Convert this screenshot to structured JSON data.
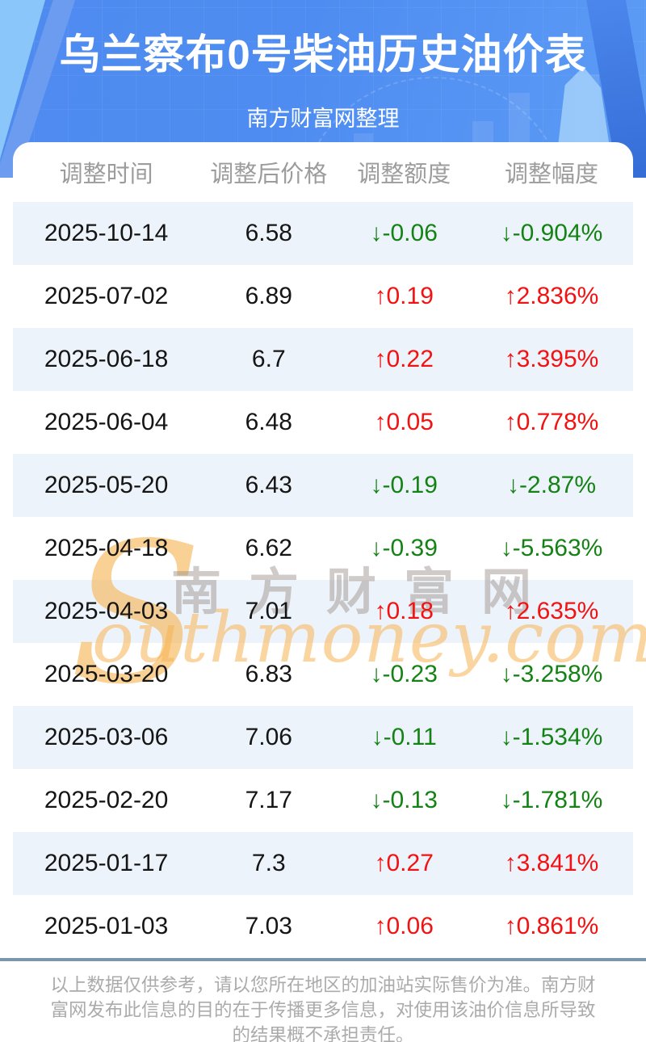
{
  "hero": {
    "title": "乌兰察布0号柴油历史油价表",
    "subtitle": "南方财富网整理"
  },
  "table": {
    "headers": [
      "调整时间",
      "调整后价格",
      "调整额度",
      "调整幅度"
    ],
    "arrows": {
      "up": "↑",
      "down": "↓"
    },
    "rows": [
      {
        "date": "2025-10-14",
        "price": "6.58",
        "change": "-0.06",
        "percent": "-0.904%",
        "direction": "down"
      },
      {
        "date": "2025-07-02",
        "price": "6.89",
        "change": "0.19",
        "percent": "2.836%",
        "direction": "up"
      },
      {
        "date": "2025-06-18",
        "price": "6.7",
        "change": "0.22",
        "percent": "3.395%",
        "direction": "up"
      },
      {
        "date": "2025-06-04",
        "price": "6.48",
        "change": "0.05",
        "percent": "0.778%",
        "direction": "up"
      },
      {
        "date": "2025-05-20",
        "price": "6.43",
        "change": "-0.19",
        "percent": "-2.87%",
        "direction": "down"
      },
      {
        "date": "2025-04-18",
        "price": "6.62",
        "change": "-0.39",
        "percent": "-5.563%",
        "direction": "down"
      },
      {
        "date": "2025-04-03",
        "price": "7.01",
        "change": "0.18",
        "percent": "2.635%",
        "direction": "up"
      },
      {
        "date": "2025-03-20",
        "price": "6.83",
        "change": "-0.23",
        "percent": "-3.258%",
        "direction": "down"
      },
      {
        "date": "2025-03-06",
        "price": "7.06",
        "change": "-0.11",
        "percent": "-1.534%",
        "direction": "down"
      },
      {
        "date": "2025-02-20",
        "price": "7.17",
        "change": "-0.13",
        "percent": "-1.781%",
        "direction": "down"
      },
      {
        "date": "2025-01-17",
        "price": "7.3",
        "change": "0.27",
        "percent": "3.841%",
        "direction": "up"
      },
      {
        "date": "2025-01-03",
        "price": "7.03",
        "change": "0.06",
        "percent": "0.861%",
        "direction": "up"
      }
    ]
  },
  "watermark": {
    "initial": "S",
    "cn": "南方财富网",
    "en": "outhmoney.com"
  },
  "footer": {
    "disclaimer": "以上数据仅供参考，请以您所在地区的加油站实际售价为准。南方财富网发布此信息的目的在于传播更多信息，对使用该油价信息所导致的结果概不承担责任。"
  },
  "colors": {
    "up": "#f31212",
    "down": "#148214",
    "hero_blue": "#4e8cf1",
    "stripe": "#edf3fa",
    "divider": "#7e96ab",
    "header_text": "#9c9c9c",
    "watermark_orange": "#f6ac3c"
  }
}
